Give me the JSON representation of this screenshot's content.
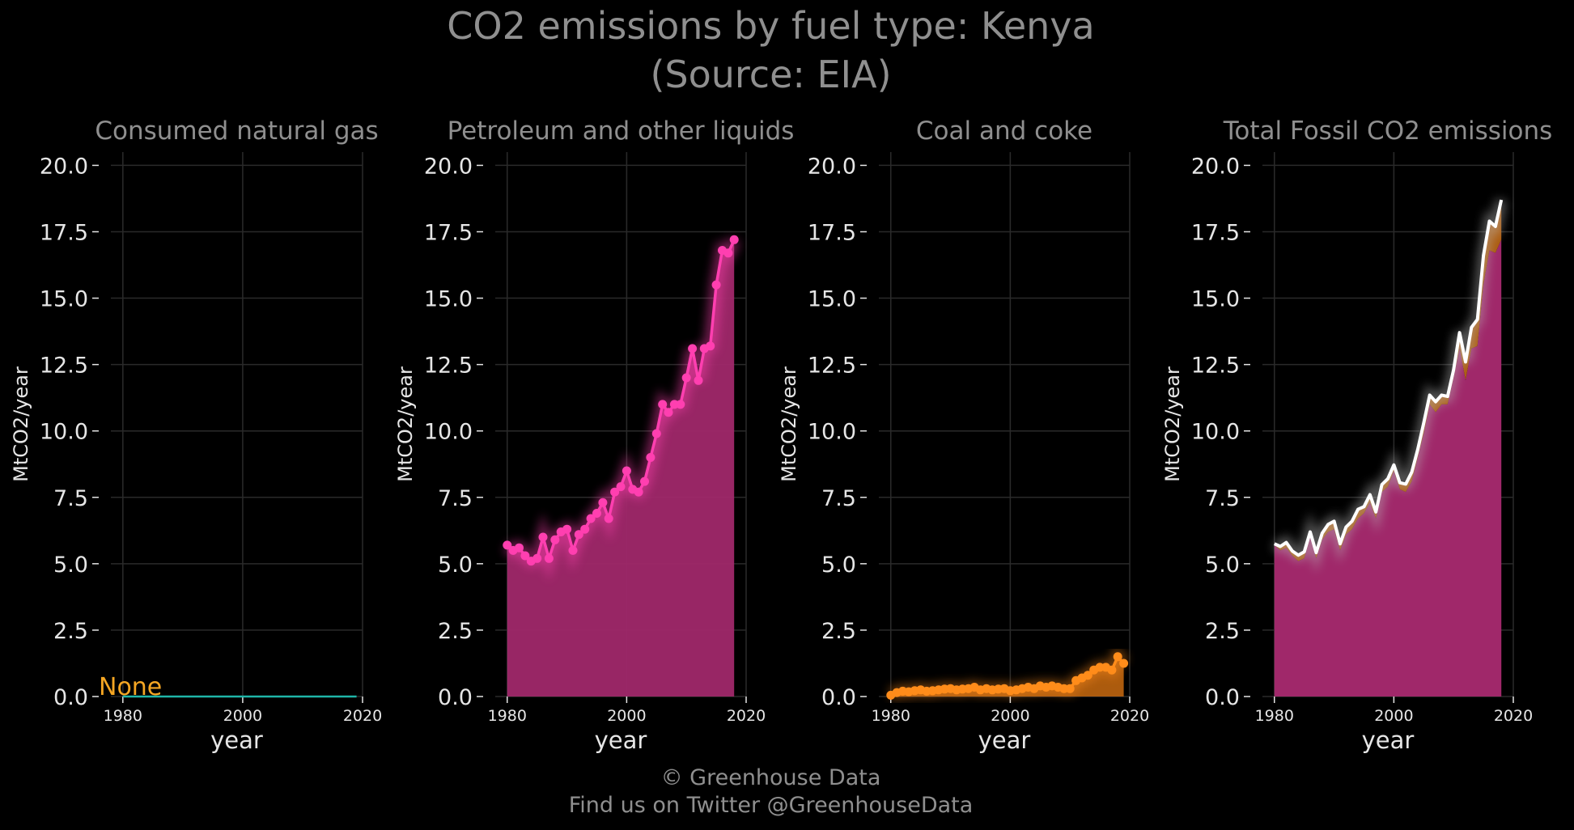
{
  "figure": {
    "title_line1": "CO2 emissions by fuel type: Kenya",
    "title_line2": "(Source: EIA)",
    "footer_line1": "© Greenhouse Data",
    "footer_line2": "Find us on Twitter @GreenhouseData"
  },
  "colors": {
    "background": "#000000",
    "grid": "#2a2a2a",
    "text": "#8f8f8f",
    "tick_text": "#e6e6e6",
    "gas": "#1fb5a8",
    "none_label": "#f5a623",
    "petroleum": "#ff3fb0",
    "petroleum_fill": "#a0286a",
    "coal": "#ff8c1a",
    "coal_fill": "#b5600f",
    "total_line": "#ffffff"
  },
  "chart_data": [
    {
      "type": "area",
      "title": "Consumed natural gas",
      "xlabel": "year",
      "ylabel": "MtCO2/year",
      "xlim": [
        1978,
        2020
      ],
      "ylim": [
        0,
        20.5
      ],
      "xticks": [
        "1980",
        "2000",
        "2020"
      ],
      "yticks": [
        "0.0",
        "2.5",
        "5.0",
        "7.5",
        "10.0",
        "12.5",
        "15.0",
        "17.5",
        "20.0"
      ],
      "annotation": "None",
      "series": [
        {
          "x": [
            1980,
            2019
          ],
          "values": [
            0,
            0
          ]
        }
      ]
    },
    {
      "type": "area",
      "title": "Petroleum and other liquids",
      "xlabel": "year",
      "ylabel": "MtCO2/year",
      "xlim": [
        1978,
        2020
      ],
      "ylim": [
        0,
        20.5
      ],
      "xticks": [
        "1980",
        "2000",
        "2020"
      ],
      "yticks": [
        "0.0",
        "2.5",
        "5.0",
        "7.5",
        "10.0",
        "12.5",
        "15.0",
        "17.5",
        "20.0"
      ],
      "series": [
        {
          "x": [
            1980,
            1981,
            1982,
            1983,
            1984,
            1985,
            1986,
            1987,
            1988,
            1989,
            1990,
            1991,
            1992,
            1993,
            1994,
            1995,
            1996,
            1997,
            1998,
            1999,
            2000,
            2001,
            2002,
            2003,
            2004,
            2005,
            2006,
            2007,
            2008,
            2009,
            2010,
            2011,
            2012,
            2013,
            2014,
            2015,
            2016,
            2017,
            2018
          ],
          "values": [
            5.7,
            5.5,
            5.6,
            5.3,
            5.1,
            5.2,
            6.0,
            5.2,
            5.9,
            6.2,
            6.3,
            5.5,
            6.1,
            6.3,
            6.7,
            6.9,
            7.3,
            6.7,
            7.7,
            7.9,
            8.5,
            7.8,
            7.7,
            8.1,
            9.0,
            9.9,
            11.0,
            10.7,
            11.0,
            11.0,
            12.0,
            13.1,
            11.9,
            13.1,
            13.2,
            15.5,
            16.8,
            16.7,
            17.2
          ]
        }
      ]
    },
    {
      "type": "area",
      "title": "Coal and coke",
      "xlabel": "year",
      "ylabel": "MtCO2/year",
      "xlim": [
        1978,
        2020
      ],
      "ylim": [
        0,
        20.5
      ],
      "xticks": [
        "1980",
        "2000",
        "2020"
      ],
      "yticks": [
        "0.0",
        "2.5",
        "5.0",
        "7.5",
        "10.0",
        "12.5",
        "15.0",
        "17.5",
        "20.0"
      ],
      "series": [
        {
          "x": [
            1980,
            1981,
            1982,
            1983,
            1984,
            1985,
            1986,
            1987,
            1988,
            1989,
            1990,
            1991,
            1992,
            1993,
            1994,
            1995,
            1996,
            1997,
            1998,
            1999,
            2000,
            2001,
            2002,
            2003,
            2004,
            2005,
            2006,
            2007,
            2008,
            2009,
            2010,
            2011,
            2012,
            2013,
            2014,
            2015,
            2016,
            2017,
            2018,
            2019
          ],
          "values": [
            0.05,
            0.15,
            0.2,
            0.18,
            0.22,
            0.25,
            0.2,
            0.22,
            0.25,
            0.28,
            0.3,
            0.25,
            0.28,
            0.3,
            0.35,
            0.25,
            0.3,
            0.25,
            0.28,
            0.3,
            0.22,
            0.25,
            0.3,
            0.35,
            0.3,
            0.4,
            0.35,
            0.4,
            0.35,
            0.3,
            0.3,
            0.6,
            0.7,
            0.8,
            1.0,
            1.1,
            1.1,
            1.0,
            1.5,
            1.25
          ]
        }
      ]
    },
    {
      "type": "area",
      "title": "Total Fossil CO2 emissions",
      "xlabel": "year",
      "ylabel": "MtCO2/year",
      "xlim": [
        1978,
        2020
      ],
      "ylim": [
        0,
        20.5
      ],
      "xticks": [
        "1980",
        "2000",
        "2020"
      ],
      "yticks": [
        "0.0",
        "2.5",
        "5.0",
        "7.5",
        "10.0",
        "12.5",
        "15.0",
        "17.5",
        "20.0"
      ],
      "series": [
        {
          "x": [
            1980,
            1981,
            1982,
            1983,
            1984,
            1985,
            1986,
            1987,
            1988,
            1989,
            1990,
            1991,
            1992,
            1993,
            1994,
            1995,
            1996,
            1997,
            1998,
            1999,
            2000,
            2001,
            2002,
            2003,
            2004,
            2005,
            2006,
            2007,
            2008,
            2009,
            2010,
            2011,
            2012,
            2013,
            2014,
            2015,
            2016,
            2017,
            2018
          ],
          "values": [
            5.75,
            5.65,
            5.8,
            5.48,
            5.32,
            5.45,
            6.2,
            5.42,
            6.15,
            6.48,
            6.6,
            5.75,
            6.38,
            6.6,
            7.05,
            7.15,
            7.6,
            6.95,
            7.98,
            8.2,
            8.72,
            8.05,
            8.0,
            8.45,
            9.3,
            10.3,
            11.35,
            11.1,
            11.35,
            11.3,
            12.3,
            13.7,
            12.6,
            13.9,
            14.2,
            16.6,
            17.9,
            17.7,
            18.7
          ]
        }
      ]
    }
  ]
}
